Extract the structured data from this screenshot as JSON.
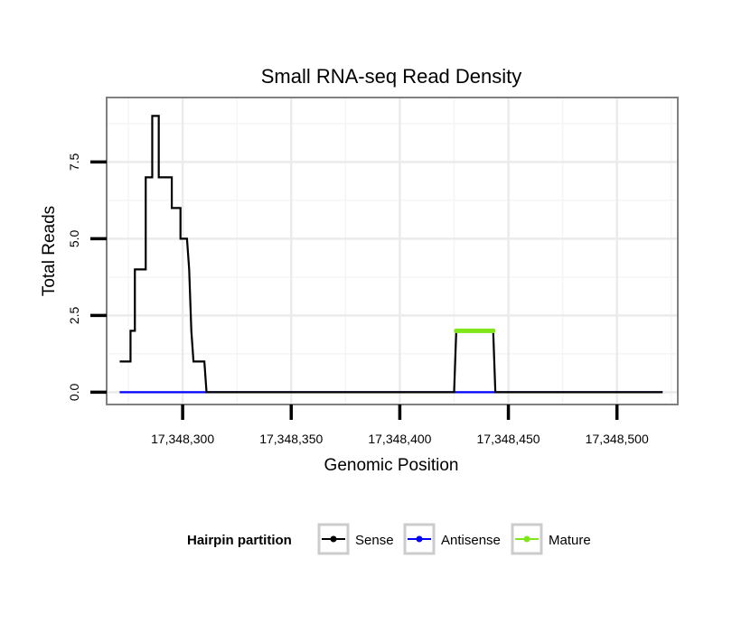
{
  "chart_data": {
    "type": "line",
    "title": "Small RNA-seq Read Density",
    "xlabel": "Genomic Position",
    "ylabel": "Total Reads",
    "xlim": [
      17348265,
      17348528
    ],
    "ylim": [
      -0.4,
      9.6
    ],
    "x_ticks": [
      {
        "value": 17348300,
        "label": "17,348,300"
      },
      {
        "value": 17348350,
        "label": "17,348,350"
      },
      {
        "value": 17348400,
        "label": "17,348,400"
      },
      {
        "value": 17348450,
        "label": "17,348,450"
      },
      {
        "value": 17348500,
        "label": "17,348,500"
      }
    ],
    "y_ticks": [
      {
        "value": 0,
        "label": "0.0"
      },
      {
        "value": 2.5,
        "label": "2.5"
      },
      {
        "value": 5,
        "label": "5.0"
      },
      {
        "value": 7.5,
        "label": "7.5"
      }
    ],
    "grid": true,
    "legend": {
      "title": "Hairpin partition",
      "position": "bottom",
      "entries": [
        "Sense",
        "Antisense",
        "Mature"
      ]
    },
    "series": [
      {
        "name": "Sense",
        "color": "#000000",
        "points": [
          [
            17348271,
            1
          ],
          [
            17348276,
            1
          ],
          [
            17348276,
            2
          ],
          [
            17348278,
            2
          ],
          [
            17348278,
            4
          ],
          [
            17348283,
            4
          ],
          [
            17348283,
            7
          ],
          [
            17348286,
            7
          ],
          [
            17348286,
            9
          ],
          [
            17348289,
            9
          ],
          [
            17348289,
            7
          ],
          [
            17348295,
            7
          ],
          [
            17348295,
            6
          ],
          [
            17348299,
            6
          ],
          [
            17348299,
            5
          ],
          [
            17348302,
            5
          ],
          [
            17348303,
            4
          ],
          [
            17348304,
            2
          ],
          [
            17348305,
            1
          ],
          [
            17348310,
            1
          ],
          [
            17348311,
            0
          ],
          [
            17348425,
            0
          ],
          [
            17348426,
            2
          ],
          [
            17348443,
            2
          ],
          [
            17348444,
            0
          ],
          [
            17348521,
            0
          ]
        ]
      },
      {
        "name": "Antisense",
        "color": "#0000ff",
        "points": [
          [
            17348271,
            0
          ],
          [
            17348521,
            0
          ]
        ]
      },
      {
        "name": "Mature",
        "color": "#80e61a",
        "points": [
          [
            17348426,
            2
          ],
          [
            17348427,
            2
          ],
          [
            17348428,
            2
          ],
          [
            17348429,
            2
          ],
          [
            17348430,
            2
          ],
          [
            17348431,
            2
          ],
          [
            17348432,
            2
          ],
          [
            17348433,
            2
          ],
          [
            17348434,
            2
          ],
          [
            17348435,
            2
          ],
          [
            17348436,
            2
          ],
          [
            17348437,
            2
          ],
          [
            17348438,
            2
          ],
          [
            17348439,
            2
          ],
          [
            17348440,
            2
          ],
          [
            17348441,
            2
          ],
          [
            17348442,
            2
          ],
          [
            17348443,
            2
          ]
        ]
      }
    ]
  }
}
